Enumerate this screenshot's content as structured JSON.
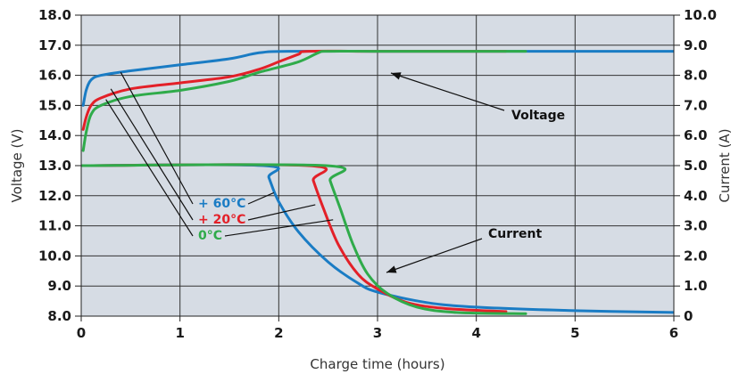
{
  "chart_data": {
    "type": "line",
    "xlabel": "Charge time (hours)",
    "ylabel_left": "Voltage (V)",
    "ylabel_right": "Current (A)",
    "xlim": [
      0,
      6
    ],
    "ylim_left": [
      8.0,
      18.0
    ],
    "ylim_right": [
      0,
      10.0
    ],
    "x_ticks": [
      "0",
      "1",
      "2",
      "3",
      "4",
      "5",
      "6"
    ],
    "y_left_ticks": [
      "8.0",
      "9.0",
      "10.0",
      "11.0",
      "12.0",
      "13.0",
      "14.0",
      "15.0",
      "16.0",
      "17.0",
      "18.0"
    ],
    "y_right_ticks": [
      "0",
      "1.0",
      "2.0",
      "3.0",
      "4.0",
      "5.0",
      "6.0",
      "7.0",
      "8.0",
      "9.0",
      "10.0"
    ],
    "grid": true,
    "plot_background": "#d6dce4",
    "annotations": {
      "voltage": "Voltage",
      "current": "Current"
    },
    "series": [
      {
        "name": "+ 60°C",
        "color": "#1a7cc4",
        "voltage": [
          [
            0.02,
            15.0
          ],
          [
            0.05,
            15.5
          ],
          [
            0.1,
            15.85
          ],
          [
            0.2,
            16.0
          ],
          [
            0.5,
            16.15
          ],
          [
            1.0,
            16.35
          ],
          [
            1.5,
            16.55
          ],
          [
            1.8,
            16.75
          ],
          [
            2.1,
            16.8
          ],
          [
            3.0,
            16.8
          ],
          [
            4.0,
            16.8
          ],
          [
            5.0,
            16.8
          ],
          [
            6.0,
            16.8
          ]
        ],
        "current": [
          [
            0.0,
            5.0
          ],
          [
            1.85,
            5.0
          ],
          [
            1.9,
            4.6
          ],
          [
            2.0,
            3.8
          ],
          [
            2.2,
            2.8
          ],
          [
            2.5,
            1.8
          ],
          [
            2.8,
            1.1
          ],
          [
            3.0,
            0.8
          ],
          [
            3.5,
            0.45
          ],
          [
            4.0,
            0.3
          ],
          [
            5.0,
            0.18
          ],
          [
            6.0,
            0.12
          ]
        ]
      },
      {
        "name": "+ 20°C",
        "color": "#e32028",
        "voltage": [
          [
            0.02,
            14.2
          ],
          [
            0.05,
            14.6
          ],
          [
            0.1,
            15.0
          ],
          [
            0.2,
            15.25
          ],
          [
            0.5,
            15.55
          ],
          [
            1.0,
            15.75
          ],
          [
            1.5,
            15.95
          ],
          [
            1.8,
            16.2
          ],
          [
            2.0,
            16.45
          ],
          [
            2.2,
            16.7
          ],
          [
            2.3,
            16.8
          ],
          [
            3.0,
            16.8
          ],
          [
            4.0,
            16.8
          ],
          [
            4.3,
            16.8
          ]
        ],
        "current": [
          [
            0.0,
            5.0
          ],
          [
            2.3,
            5.0
          ],
          [
            2.35,
            4.5
          ],
          [
            2.45,
            3.6
          ],
          [
            2.6,
            2.4
          ],
          [
            2.8,
            1.4
          ],
          [
            3.0,
            0.9
          ],
          [
            3.3,
            0.45
          ],
          [
            3.7,
            0.25
          ],
          [
            4.3,
            0.15
          ]
        ]
      },
      {
        "name": "0°C",
        "color": "#2fab4a",
        "voltage": [
          [
            0.02,
            13.5
          ],
          [
            0.05,
            14.1
          ],
          [
            0.1,
            14.7
          ],
          [
            0.2,
            15.0
          ],
          [
            0.5,
            15.3
          ],
          [
            1.0,
            15.5
          ],
          [
            1.5,
            15.8
          ],
          [
            1.8,
            16.1
          ],
          [
            2.2,
            16.45
          ],
          [
            2.4,
            16.75
          ],
          [
            2.5,
            16.8
          ],
          [
            3.0,
            16.8
          ],
          [
            4.0,
            16.8
          ],
          [
            4.5,
            16.8
          ]
        ],
        "current": [
          [
            0.0,
            5.0
          ],
          [
            2.48,
            5.0
          ],
          [
            2.52,
            4.5
          ],
          [
            2.62,
            3.6
          ],
          [
            2.75,
            2.4
          ],
          [
            2.9,
            1.4
          ],
          [
            3.1,
            0.75
          ],
          [
            3.4,
            0.3
          ],
          [
            3.8,
            0.12
          ],
          [
            4.5,
            0.08
          ]
        ]
      }
    ],
    "legend_labels": [
      "+ 60°C",
      "+ 20°C",
      "0°C"
    ]
  }
}
